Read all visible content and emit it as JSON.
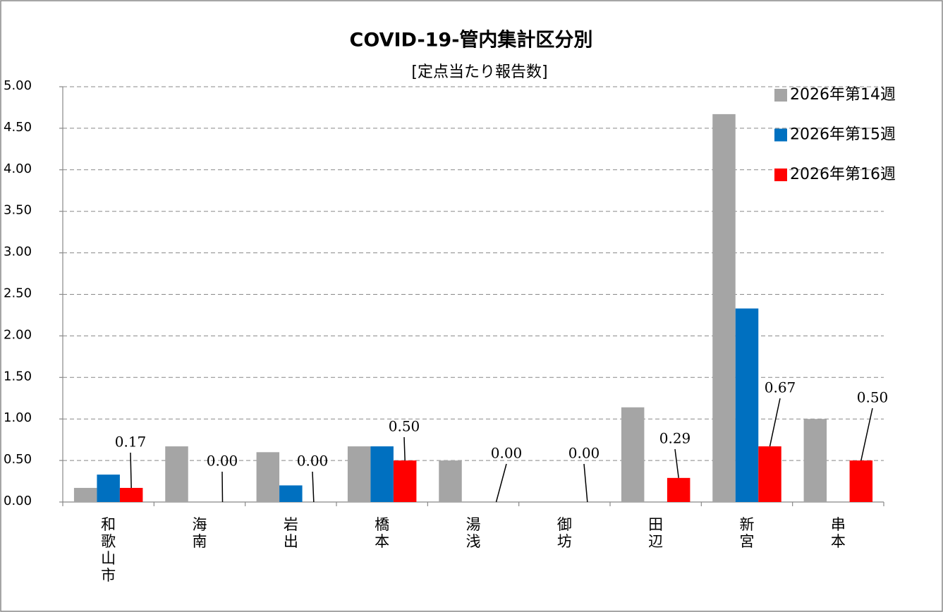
{
  "chart_data": {
    "type": "bar",
    "title": "COVID-19-管内集計区分別",
    "subtitle": "[定点当たり報告数]",
    "categories": [
      "和歌山市",
      "海南",
      "岩出",
      "橋本",
      "湯浅",
      "御坊",
      "田辺",
      "新宮",
      "串本"
    ],
    "series": [
      {
        "name": "2026年第14週",
        "color": "#a5a5a5",
        "values": [
          0.17,
          0.67,
          0.6,
          0.67,
          0.5,
          0,
          1.14,
          4.67,
          1.0
        ]
      },
      {
        "name": "2026年第15週",
        "color": "#0070c0",
        "values": [
          0.33,
          0,
          0.2,
          0.67,
          0,
          0,
          0,
          2.33,
          0
        ]
      },
      {
        "name": "2026年第16週",
        "color": "#ff0000",
        "values": [
          0.17,
          0,
          0,
          0.5,
          0,
          0,
          0.29,
          0.67,
          0.5
        ],
        "value_labels": [
          "0.17",
          "0.00",
          "0.00",
          "0.50",
          "0.00",
          "0.00",
          "0.29",
          "0.67",
          "0.50"
        ]
      }
    ],
    "ylim": [
      0,
      5
    ],
    "yticks": [
      {
        "value": 0,
        "label": "0.00"
      },
      {
        "value": 0.5,
        "label": "0.50"
      },
      {
        "value": 1,
        "label": "1.00"
      },
      {
        "value": 1.5,
        "label": "1.50"
      },
      {
        "value": 2,
        "label": "2.00"
      },
      {
        "value": 2.5,
        "label": "2.50"
      },
      {
        "value": 3,
        "label": "3.00"
      },
      {
        "value": 3.5,
        "label": "3.50"
      },
      {
        "value": 4,
        "label": "4.00"
      },
      {
        "value": 4.5,
        "label": "4.50"
      },
      {
        "value": 5,
        "label": "5.00"
      }
    ],
    "grid": true,
    "legend": "upper right"
  }
}
